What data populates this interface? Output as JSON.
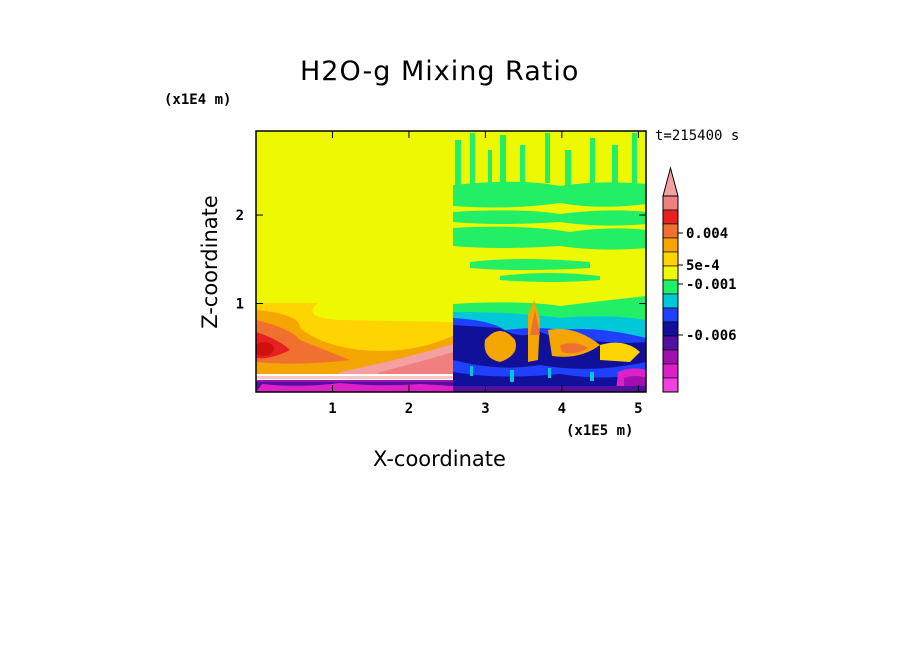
{
  "chart_data": {
    "type": "heatmap",
    "title": "H2O-g Mixing Ratio",
    "xlabel": "X-coordinate",
    "ylabel": "Z-coordinate",
    "x_multiplier": "(x1E5 m)",
    "y_multiplier": "(x1E4 m)",
    "time_label": "t=215400 s",
    "xlim": [
      0,
      5.1
    ],
    "ylim": [
      0,
      2.95
    ],
    "x_ticks": [
      "1",
      "2",
      "3",
      "4",
      "5"
    ],
    "y_ticks": [
      "1",
      "2"
    ],
    "colorbar": {
      "labels": [
        "0.004",
        "5e-4",
        "-0.001",
        "-0.006"
      ],
      "levels": [
        {
          "name": "overflow",
          "color": "#f4a0a0"
        },
        {
          "name": "level-1",
          "color": "#f08080"
        },
        {
          "name": "level-2",
          "color": "#e82020"
        },
        {
          "name": "level-3",
          "color": "#f07030"
        },
        {
          "name": "level-4",
          "color": "#f5a500"
        },
        {
          "name": "level-5",
          "color": "#ffd400"
        },
        {
          "name": "level-6",
          "color": "#eef800"
        },
        {
          "name": "level-7",
          "color": "#22ee66"
        },
        {
          "name": "level-8",
          "color": "#00c8d8"
        },
        {
          "name": "level-9",
          "color": "#2040ff"
        },
        {
          "name": "level-10",
          "color": "#10109a"
        },
        {
          "name": "level-11",
          "color": "#5010a0"
        },
        {
          "name": "level-12",
          "color": "#a010b0"
        },
        {
          "name": "level-13",
          "color": "#dd20c8"
        },
        {
          "name": "level-14",
          "color": "#f040e0"
        }
      ]
    }
  }
}
